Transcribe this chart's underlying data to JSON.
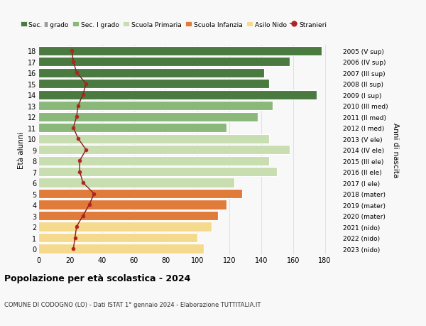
{
  "ages": [
    0,
    1,
    2,
    3,
    4,
    5,
    6,
    7,
    8,
    9,
    10,
    11,
    12,
    13,
    14,
    15,
    16,
    17,
    18
  ],
  "years_labels": [
    "2023 (nido)",
    "2022 (nido)",
    "2021 (nido)",
    "2020 (mater)",
    "2019 (mater)",
    "2018 (mater)",
    "2017 (I ele)",
    "2016 (II ele)",
    "2015 (III ele)",
    "2014 (IV ele)",
    "2013 (V ele)",
    "2012 (I med)",
    "2011 (II med)",
    "2010 (III med)",
    "2009 (I sup)",
    "2008 (II sup)",
    "2007 (III sup)",
    "2006 (IV sup)",
    "2005 (V sup)"
  ],
  "bar_values": [
    104,
    100,
    109,
    113,
    118,
    128,
    123,
    150,
    145,
    158,
    145,
    118,
    138,
    147,
    175,
    145,
    142,
    158,
    178
  ],
  "bar_colors": [
    "#f5d98c",
    "#f5d98c",
    "#f5d98c",
    "#e07b3a",
    "#e07b3a",
    "#e07b3a",
    "#c8ddb0",
    "#c8ddb0",
    "#c8ddb0",
    "#c8ddb0",
    "#c8ddb0",
    "#8ab87a",
    "#8ab87a",
    "#8ab87a",
    "#4a7a40",
    "#4a7a40",
    "#4a7a40",
    "#4a7a40",
    "#4a7a40"
  ],
  "foreigners": [
    22,
    23,
    24,
    28,
    32,
    35,
    28,
    26,
    26,
    30,
    25,
    22,
    24,
    25,
    28,
    30,
    24,
    22,
    21
  ],
  "xlim": [
    0,
    190
  ],
  "xticks": [
    0,
    20,
    40,
    60,
    80,
    100,
    120,
    140,
    160,
    180
  ],
  "title": "Popolazione per età scolastica - 2024",
  "subtitle": "COMUNE DI CODOGNO (LO) - Dati ISTAT 1° gennaio 2024 - Elaborazione TUTTITALIA.IT",
  "ylabel": "Età alunni",
  "ylabel_right": "Anni di nascita",
  "legend_labels": [
    "Sec. II grado",
    "Sec. I grado",
    "Scuola Primaria",
    "Scuola Infanzia",
    "Asilo Nido",
    "Stranieri"
  ],
  "legend_colors": [
    "#4a7a40",
    "#8ab87a",
    "#c8ddb0",
    "#e07b3a",
    "#f5d98c",
    "#b22222"
  ],
  "bg_color": "#f8f8f8",
  "grid_color": "#dddddd",
  "bar_edge_color": "#ffffff"
}
